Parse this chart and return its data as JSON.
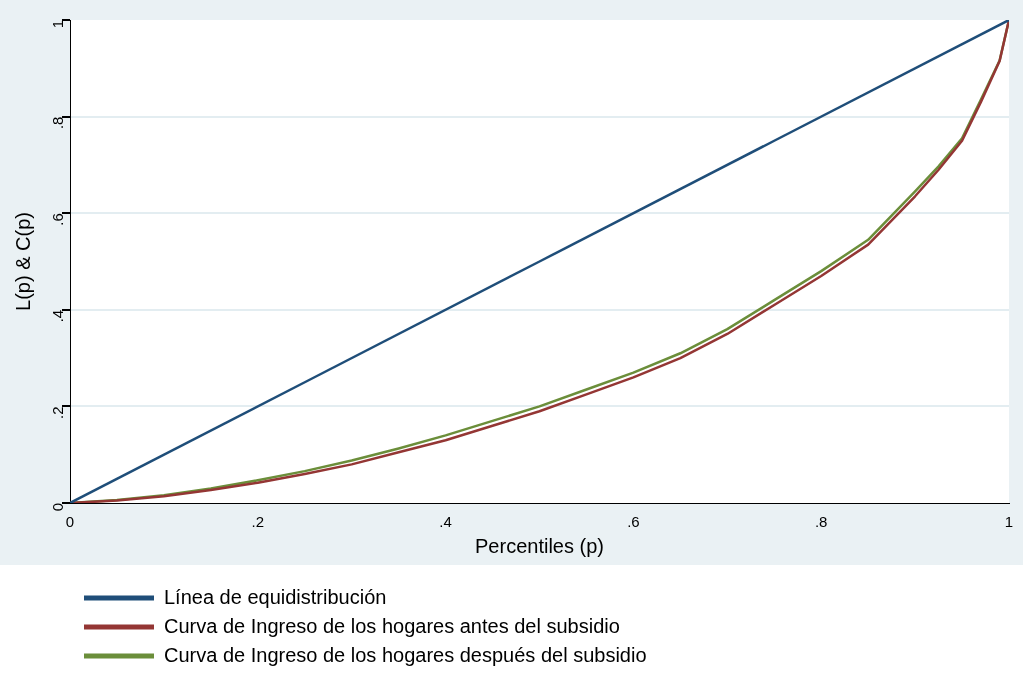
{
  "chart_data": {
    "type": "line",
    "xlabel": "Percentiles (p)",
    "ylabel": "L(p) & C(p)",
    "xlim": [
      0,
      1
    ],
    "ylim": [
      0,
      1
    ],
    "xticks": [
      0,
      {
        "value": 0.2,
        "label": ".2"
      },
      {
        "value": 0.4,
        "label": ".4"
      },
      {
        "value": 0.6,
        "label": ".6"
      },
      {
        "value": 0.8,
        "label": ".8"
      },
      1
    ],
    "yticks": [
      0,
      {
        "value": 0.2,
        "label": ".2"
      },
      {
        "value": 0.4,
        "label": ".4"
      },
      {
        "value": 0.6,
        "label": ".6"
      },
      {
        "value": 0.8,
        "label": ".8"
      },
      1
    ],
    "grid": "y",
    "legend": "bottom",
    "marker": "none",
    "line_style": "solid",
    "series": [
      {
        "name": "Línea de equidistribución",
        "color": "#1f4e79",
        "x": [
          0,
          0.25,
          0.5,
          0.75,
          1
        ],
        "values": [
          0,
          0.25,
          0.5,
          0.75,
          1
        ]
      },
      {
        "name": "Curva de Ingreso de los hogares antes del subsidio",
        "color": "#943634",
        "x": [
          0,
          0.05,
          0.1,
          0.15,
          0.2,
          0.25,
          0.3,
          0.35,
          0.4,
          0.45,
          0.5,
          0.55,
          0.6,
          0.65,
          0.7,
          0.75,
          0.8,
          0.85,
          0.9,
          0.925,
          0.95,
          0.97,
          0.99,
          1
        ],
        "values": [
          0,
          0.005,
          0.014,
          0.027,
          0.042,
          0.06,
          0.08,
          0.105,
          0.13,
          0.16,
          0.19,
          0.225,
          0.26,
          0.3,
          0.35,
          0.41,
          0.47,
          0.535,
          0.635,
          0.69,
          0.75,
          0.83,
          0.915,
          1
        ]
      },
      {
        "name": "Curva de Ingreso de los hogares después del subsidio",
        "color": "#6b8e3a",
        "x": [
          0,
          0.05,
          0.1,
          0.15,
          0.2,
          0.25,
          0.3,
          0.35,
          0.4,
          0.45,
          0.5,
          0.55,
          0.6,
          0.65,
          0.7,
          0.75,
          0.8,
          0.85,
          0.9,
          0.925,
          0.95,
          0.97,
          0.99,
          1
        ],
        "values": [
          0,
          0.006,
          0.016,
          0.03,
          0.047,
          0.066,
          0.088,
          0.113,
          0.14,
          0.17,
          0.2,
          0.235,
          0.27,
          0.31,
          0.36,
          0.42,
          0.48,
          0.545,
          0.645,
          0.697,
          0.755,
          0.835,
          0.916,
          1
        ]
      }
    ]
  }
}
